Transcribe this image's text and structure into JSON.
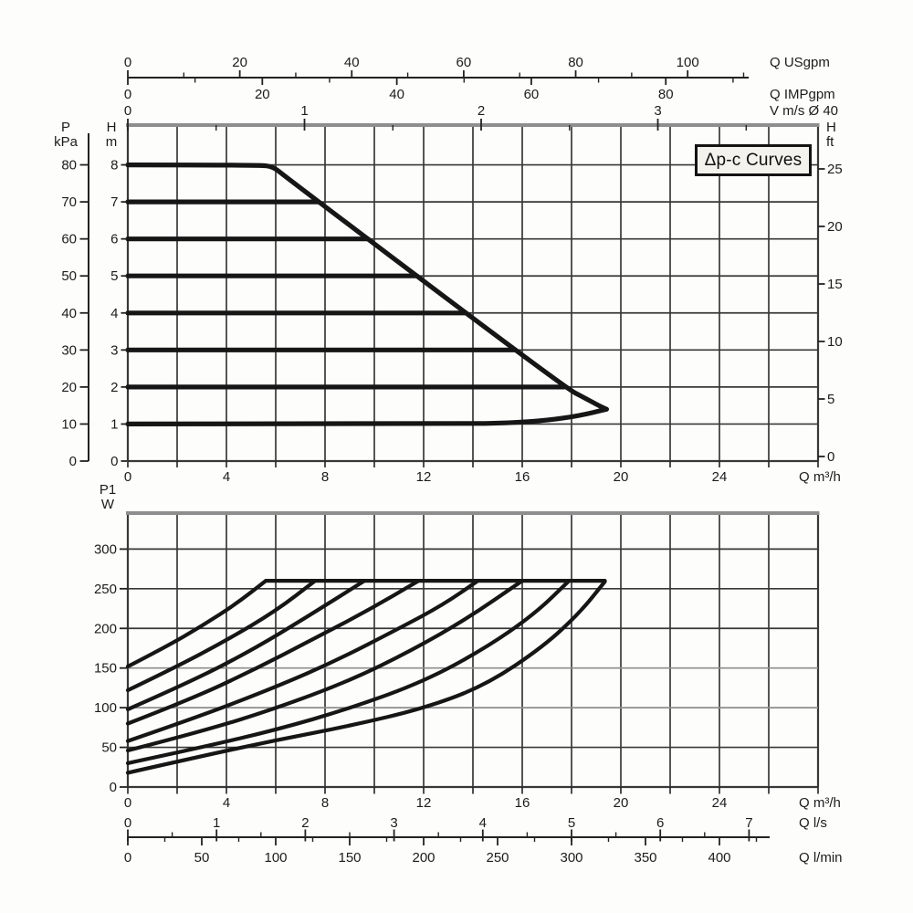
{
  "colors": {
    "curve": "#161616",
    "grid": "#383838",
    "grid_light": "#8d8d8d",
    "frame_top": "#8e8e8e",
    "axis": "#222222",
    "text": "#1c1c1c",
    "box_border": "#141414",
    "box_bg": "#f3f2ec"
  },
  "axis_headers": {
    "pressure": [
      "P",
      "kPa"
    ],
    "head_left": [
      "H",
      "m"
    ],
    "head_right": [
      "H",
      "ft"
    ],
    "power": [
      "P1",
      "W"
    ]
  },
  "chart_data": [
    {
      "type": "line",
      "name": "head-vs-flow",
      "annotation": "Δp-c Curves",
      "x_axis_m3h": {
        "label": "Q m³/h",
        "range": [
          0,
          28
        ],
        "grid_step": 2,
        "labeled_ticks": [
          0,
          4,
          8,
          12,
          16,
          20,
          24
        ]
      },
      "x_axis_usgpm": {
        "label": "Q USgpm",
        "major_ticks": [
          0,
          20,
          40,
          60,
          80,
          100
        ],
        "minor_ticks": [
          10,
          30,
          50,
          70,
          90,
          110
        ]
      },
      "x_axis_impgpm": {
        "label": "Q IMPgpm",
        "major_ticks": [
          0,
          20,
          40,
          60,
          80
        ],
        "minor_ticks": [
          10,
          30,
          50,
          70,
          90
        ]
      },
      "x_axis_vms": {
        "label": "V m/s Ø 40",
        "major_ticks": [
          0,
          1,
          2,
          3
        ],
        "minor_ticks": [
          0.5,
          1.5,
          2.5,
          3.5
        ]
      },
      "y_axis_m": {
        "ticks": [
          0,
          1,
          2,
          3,
          4,
          5,
          6,
          7,
          8
        ]
      },
      "y_axis_kpa": {
        "ticks": [
          0,
          10,
          20,
          30,
          40,
          50,
          60,
          70,
          80
        ]
      },
      "y_axis_ft": {
        "ticks": [
          0,
          5,
          10,
          15,
          20,
          25
        ]
      },
      "series": [
        {
          "name": "h8-and-max-envelope",
          "h_m": 8,
          "points": [
            [
              0,
              8
            ],
            [
              5.3,
              8
            ],
            [
              5.9,
              7.95
            ],
            [
              6.35,
              7.7
            ],
            [
              17.7,
              2
            ],
            [
              18.6,
              1.68
            ],
            [
              19.1,
              1.5
            ],
            [
              19.42,
              1.4
            ]
          ]
        },
        {
          "name": "h7",
          "h_m": 7,
          "points": [
            [
              0,
              7
            ],
            [
              7.74,
              7
            ]
          ]
        },
        {
          "name": "h6",
          "h_m": 6,
          "points": [
            [
              0,
              6
            ],
            [
              9.74,
              6
            ]
          ]
        },
        {
          "name": "h5",
          "h_m": 5,
          "points": [
            [
              0,
              5
            ],
            [
              11.73,
              5
            ]
          ]
        },
        {
          "name": "h4",
          "h_m": 4,
          "points": [
            [
              0,
              4
            ],
            [
              13.72,
              4
            ]
          ]
        },
        {
          "name": "h3",
          "h_m": 3,
          "points": [
            [
              0,
              3
            ],
            [
              15.71,
              3
            ]
          ]
        },
        {
          "name": "h2",
          "h_m": 2,
          "points": [
            [
              0,
              2
            ],
            [
              17.7,
              2
            ]
          ]
        },
        {
          "name": "h1-and-min-boundary",
          "h_m": 1,
          "points": [
            [
              0,
              1
            ],
            [
              13.5,
              1
            ],
            [
              15.5,
              1.03
            ],
            [
              17,
              1.1
            ],
            [
              18.3,
              1.22
            ],
            [
              19.42,
              1.4
            ]
          ]
        }
      ]
    },
    {
      "type": "line",
      "name": "power-vs-flow",
      "x_axis_m3h": {
        "label": "Q m³/h",
        "range": [
          0,
          28
        ],
        "grid_step": 2,
        "labeled_ticks": [
          0,
          4,
          8,
          12,
          16,
          20,
          24
        ]
      },
      "x_axis_ls": {
        "label": "Q l/s",
        "major_ticks": [
          0,
          1,
          2,
          3,
          4,
          5,
          6,
          7
        ]
      },
      "x_axis_lmin": {
        "label": "Q l/min",
        "major_ticks": [
          0,
          50,
          100,
          150,
          200,
          250,
          300,
          350,
          400
        ]
      },
      "y_axis_w": {
        "ticks": [
          0,
          50,
          100,
          150,
          200,
          250,
          300
        ]
      },
      "series": [
        {
          "name": "p1-h8",
          "points": [
            [
              0,
              152
            ],
            [
              1.5,
              176
            ],
            [
              3,
              203
            ],
            [
              4.4,
              231
            ],
            [
              5.6,
              260
            ]
          ]
        },
        {
          "name": "p1-h7",
          "points": [
            [
              0,
              122
            ],
            [
              2,
              152
            ],
            [
              4,
              185
            ],
            [
              6,
              222
            ],
            [
              7.6,
              260
            ]
          ]
        },
        {
          "name": "p1-h6",
          "points": [
            [
              0,
              98
            ],
            [
              2.5,
              132
            ],
            [
              5,
              172
            ],
            [
              7.3,
              215
            ],
            [
              9.6,
              260
            ]
          ]
        },
        {
          "name": "p1-h5",
          "points": [
            [
              0,
              80
            ],
            [
              2.5,
              110
            ],
            [
              5,
              146
            ],
            [
              7.5,
              186
            ],
            [
              9.7,
              222
            ],
            [
              11.8,
              260
            ]
          ]
        },
        {
          "name": "p1-h4",
          "points": [
            [
              0,
              58
            ],
            [
              3,
              90
            ],
            [
              6,
              126
            ],
            [
              8.5,
              160
            ],
            [
              11,
              200
            ],
            [
              12.8,
              230
            ],
            [
              14.2,
              260
            ]
          ]
        },
        {
          "name": "p1-h3",
          "points": [
            [
              0,
              46
            ],
            [
              3,
              70
            ],
            [
              6,
              99
            ],
            [
              9,
              134
            ],
            [
              11.5,
              172
            ],
            [
              13.8,
              213
            ],
            [
              16,
              260
            ]
          ]
        },
        {
          "name": "p1-h2",
          "points": [
            [
              0,
              30
            ],
            [
              3,
              50
            ],
            [
              6,
              72
            ],
            [
              9,
              99
            ],
            [
              12,
              133
            ],
            [
              14.5,
              175
            ],
            [
              16.5,
              218
            ],
            [
              17.9,
              260
            ]
          ]
        },
        {
          "name": "p1-h1",
          "points": [
            [
              0,
              18
            ],
            [
              3,
              39
            ],
            [
              6,
              59
            ],
            [
              9,
              77
            ],
            [
              12,
              99
            ],
            [
              14.5,
              128
            ],
            [
              16.9,
              178
            ],
            [
              18.4,
              222
            ],
            [
              19.35,
              259
            ]
          ]
        },
        {
          "name": "p1-max-plateau",
          "points": [
            [
              5.6,
              260
            ],
            [
              19.35,
              260
            ]
          ]
        }
      ]
    }
  ]
}
